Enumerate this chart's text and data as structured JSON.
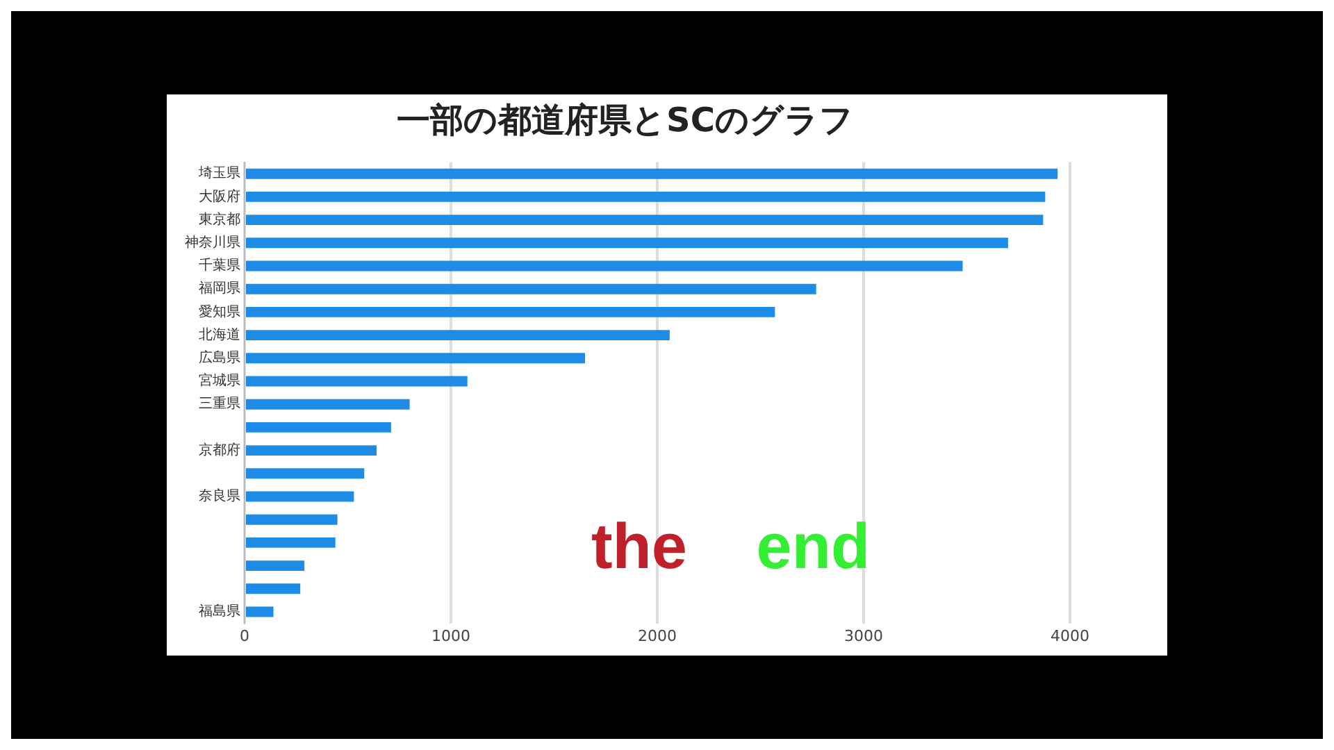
{
  "chart_data": {
    "type": "bar",
    "orientation": "horizontal",
    "title": "一部の都道府県とSCのグラフ",
    "categories": [
      "埼玉県",
      "大阪府",
      "東京都",
      "神奈川県",
      "千葉県",
      "福岡県",
      "愛知県",
      "北海道",
      "広島県",
      "宮城県",
      "三重県",
      null,
      "京都府",
      null,
      "奈良県",
      null,
      null,
      null,
      null,
      "福島県"
    ],
    "values": [
      3940,
      3880,
      3870,
      3700,
      3480,
      2770,
      2570,
      2060,
      1650,
      1080,
      800,
      710,
      640,
      580,
      530,
      450,
      440,
      290,
      270,
      140
    ],
    "color": "#1e8ce6",
    "xlim": [
      0,
      4000
    ],
    "xticks": [
      0,
      1000,
      2000,
      3000,
      4000
    ],
    "grid": "x",
    "legend": false,
    "annotations": [
      "the",
      "end"
    ]
  }
}
